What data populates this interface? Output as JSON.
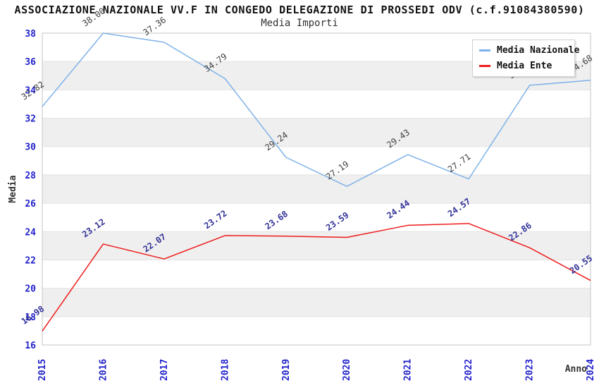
{
  "header": {
    "title": "ASSOCIAZIONE NAZIONALE VV.F IN CONGEDO DELEGAZIONE DI PROSSEDI ODV (c.f.91084380590)",
    "subtitle": "Media Importi"
  },
  "axes": {
    "ylabel": "Media",
    "xlabel": "Anno",
    "y_ticks": [
      16,
      18,
      20,
      22,
      24,
      26,
      28,
      30,
      32,
      34,
      36,
      38
    ],
    "tick_color": "#2222cc"
  },
  "legend": {
    "position": "top-right",
    "entries": [
      "Media Nazionale",
      "Media Ente"
    ]
  },
  "colors": {
    "band_gray": "#efefef",
    "grid_line": "#e3e3e3",
    "plot_border": "#c4c4c4",
    "background": "#ffffff"
  },
  "chart_data": {
    "type": "line",
    "title": "ASSOCIAZIONE NAZIONALE VV.F IN CONGEDO DELEGAZIONE DI PROSSEDI ODV (c.f.91084380590)",
    "subtitle": "Media Importi",
    "xlabel": "Anno",
    "ylabel": "Media",
    "ylim": [
      16,
      38
    ],
    "y_step": 2,
    "grid": "horizontal-bands-alternating",
    "legend_position": "top-right",
    "categories": [
      "2015",
      "2016",
      "2017",
      "2018",
      "2019",
      "2020",
      "2021",
      "2022",
      "2023",
      "2024"
    ],
    "series": [
      {
        "name": "Media Nazionale",
        "color": "#7fb2e8",
        "label_color": "#404040",
        "values": [
          32.82,
          38.0,
          37.36,
          34.79,
          29.24,
          27.19,
          29.43,
          27.71,
          34.32,
          34.68
        ]
      },
      {
        "name": "Media Ente",
        "color": "#ee1c1c",
        "label_color": "#333399",
        "values": [
          16.98,
          23.12,
          22.07,
          23.72,
          23.68,
          23.59,
          24.44,
          24.57,
          22.86,
          20.55
        ]
      }
    ]
  }
}
